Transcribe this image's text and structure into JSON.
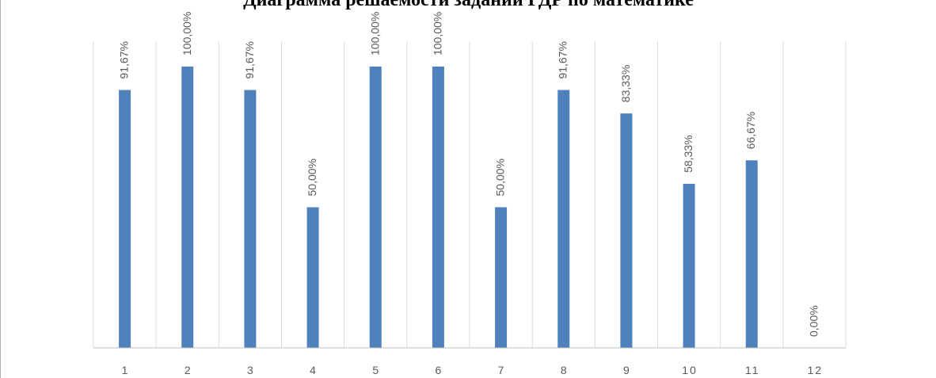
{
  "chart_data": {
    "type": "bar",
    "title": "Диаграмма решаемости заданий ГДР по математике",
    "categories": [
      "1",
      "2",
      "3",
      "4",
      "5",
      "6",
      "7",
      "8",
      "9",
      "10",
      "11",
      "12"
    ],
    "values": [
      91.67,
      100,
      91.67,
      50,
      100,
      100,
      50,
      91.67,
      83.33,
      58.33,
      66.67,
      0
    ],
    "data_labels": [
      "91,67%",
      "100,00%",
      "91,67%",
      "50,00%",
      "100,00%",
      "100,00%",
      "50,00%",
      "91,67%",
      "83,33%",
      "58,33%",
      "66,67%",
      "0,00%"
    ],
    "ylim": [
      0,
      100
    ],
    "grid": "vertical",
    "legend": "none",
    "colors": {
      "bar": "#4f81bd",
      "grid": "#d9d9d9",
      "axis": "#bfbfbf",
      "label": "#595959"
    }
  }
}
